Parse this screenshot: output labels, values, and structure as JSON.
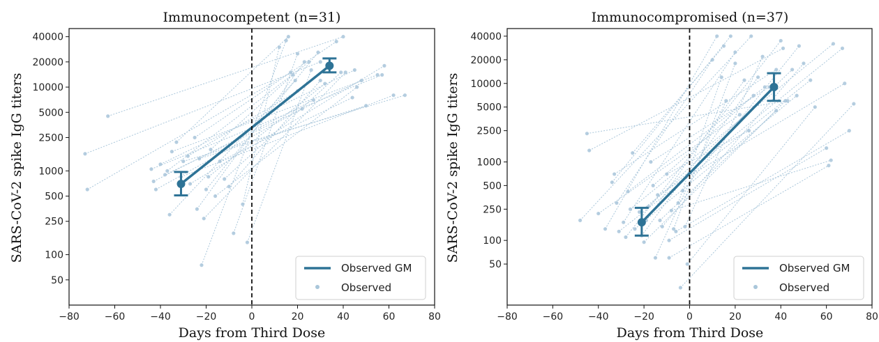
{
  "colors": {
    "gm": "#2e7396",
    "observed": "#a9c6da",
    "zero_line": "#111111",
    "frame": "#111111"
  },
  "chart_data": [
    {
      "type": "line",
      "title": "Immunocompetent (n=31)",
      "xlabel": "Days from Third Dose",
      "ylabel": "SARS-CoV-2 spike IgG titers",
      "xlim": [
        -80,
        80
      ],
      "ylim": [
        25,
        50000
      ],
      "yscale": "log",
      "grid": false,
      "legend": "bottom-right",
      "x_ticks": [
        -80,
        -60,
        -40,
        -20,
        0,
        20,
        40,
        60,
        80
      ],
      "y_ticks": [
        50,
        100,
        250,
        500,
        1000,
        2500,
        5000,
        10000,
        20000,
        40000
      ],
      "vline_x": 0,
      "legend_entries": [
        "Observed GM",
        "Observed"
      ],
      "gm": {
        "name": "Observed GM",
        "points": [
          {
            "x": -31,
            "y": 700,
            "ci": [
              510,
              970
            ]
          },
          {
            "x": 34,
            "y": 18000,
            "ci": [
              15000,
              22000
            ]
          }
        ]
      },
      "observed_pairs": [
        [
          [
            -73,
            1600
          ],
          [
            30,
            20000
          ]
        ],
        [
          [
            -72,
            600
          ],
          [
            17,
            15000
          ]
        ],
        [
          [
            -63,
            4500
          ],
          [
            40,
            40000
          ]
        ],
        [
          [
            -44,
            1050
          ],
          [
            57,
            14000
          ]
        ],
        [
          [
            -43,
            750
          ],
          [
            27,
            7000
          ]
        ],
        [
          [
            -42,
            600
          ],
          [
            22,
            5500
          ]
        ],
        [
          [
            -40,
            1200
          ],
          [
            45,
            16000
          ]
        ],
        [
          [
            -38,
            900
          ],
          [
            48,
            12000
          ]
        ],
        [
          [
            -37,
            1000
          ],
          [
            25,
            20000
          ]
        ],
        [
          [
            -36,
            300
          ],
          [
            19,
            12000
          ]
        ],
        [
          [
            -35,
            1700
          ],
          [
            55,
            14000
          ]
        ],
        [
          [
            -33,
            2200
          ],
          [
            16,
            40000
          ]
        ],
        [
          [
            -31,
            850
          ],
          [
            62,
            8000
          ]
        ],
        [
          [
            -30,
            1300
          ],
          [
            67,
            8000
          ]
        ],
        [
          [
            -28,
            1500
          ],
          [
            20,
            9000
          ]
        ],
        [
          [
            -27,
            700
          ],
          [
            58,
            18000
          ]
        ],
        [
          [
            -25,
            2500
          ],
          [
            37,
            35000
          ]
        ],
        [
          [
            -24,
            350
          ],
          [
            23,
            20000
          ]
        ],
        [
          [
            -23,
            1400
          ],
          [
            50,
            6000
          ]
        ],
        [
          [
            -22,
            75
          ],
          [
            15,
            36000
          ]
        ],
        [
          [
            -21,
            270
          ],
          [
            41,
            15000
          ]
        ],
        [
          [
            -20,
            600
          ],
          [
            29,
            26000
          ]
        ],
        [
          [
            -19,
            850
          ],
          [
            32,
            11000
          ]
        ],
        [
          [
            -18,
            1800
          ],
          [
            18,
            14000
          ]
        ],
        [
          [
            -16,
            500
          ],
          [
            46,
            10000
          ]
        ],
        [
          [
            -14,
            1300
          ],
          [
            44,
            7500
          ]
        ],
        [
          [
            -12,
            800
          ],
          [
            39,
            15000
          ]
        ],
        [
          [
            -10,
            650
          ],
          [
            30,
            12000
          ]
        ],
        [
          [
            -8,
            180
          ],
          [
            20,
            25000
          ]
        ],
        [
          [
            -4,
            400
          ],
          [
            12,
            30000
          ]
        ],
        [
          [
            -2,
            140
          ],
          [
            26,
            16000
          ]
        ]
      ]
    },
    {
      "type": "line",
      "title": "Immunocompromised (n=37)",
      "xlabel": "Days from Third Dose",
      "ylabel": "SARS-CoV-2 spike IgG titers",
      "xlim": [
        -80,
        80
      ],
      "ylim": [
        15,
        50000
      ],
      "yscale": "log",
      "grid": false,
      "legend": "bottom-right",
      "x_ticks": [
        -80,
        -60,
        -40,
        -20,
        0,
        20,
        40,
        60,
        80
      ],
      "y_ticks": [
        50,
        100,
        250,
        500,
        1000,
        2500,
        5000,
        10000,
        20000,
        40000
      ],
      "vline_x": 0,
      "legend_entries": [
        "Observed GM",
        "Observed"
      ],
      "gm": {
        "name": "Observed GM",
        "points": [
          {
            "x": -21,
            "y": 170,
            "ci": [
              115,
              260
            ]
          },
          {
            "x": 37,
            "y": 9000,
            "ci": [
              6000,
              13500
            ]
          }
        ]
      },
      "observed_pairs": [
        [
          [
            -48,
            180
          ],
          [
            27,
            40000
          ]
        ],
        [
          [
            -45,
            2300
          ],
          [
            43,
            6000
          ]
        ],
        [
          [
            -44,
            1400
          ],
          [
            41,
            28000
          ]
        ],
        [
          [
            -40,
            220
          ],
          [
            22,
            4000
          ]
        ],
        [
          [
            -37,
            140
          ],
          [
            12,
            40000
          ]
        ],
        [
          [
            -34,
            550
          ],
          [
            18,
            40000
          ]
        ],
        [
          [
            -33,
            700
          ],
          [
            38,
            15000
          ]
        ],
        [
          [
            -32,
            300
          ],
          [
            10,
            20000
          ]
        ],
        [
          [
            -31,
            130
          ],
          [
            53,
            11000
          ]
        ],
        [
          [
            -29,
            170
          ],
          [
            20,
            25000
          ]
        ],
        [
          [
            -28,
            110
          ],
          [
            40,
            35000
          ]
        ],
        [
          [
            -27,
            420
          ],
          [
            33,
            9000
          ]
        ],
        [
          [
            -26,
            250
          ],
          [
            63,
            32000
          ]
        ],
        [
          [
            -25,
            1300
          ],
          [
            15,
            30000
          ]
        ],
        [
          [
            -24,
            140
          ],
          [
            47,
            7000
          ]
        ],
        [
          [
            -22,
            230
          ],
          [
            67,
            28000
          ]
        ],
        [
          [
            -21,
            115
          ],
          [
            30,
            12000
          ]
        ],
        [
          [
            -20,
            95
          ],
          [
            42,
            6000
          ]
        ],
        [
          [
            -19,
            180
          ],
          [
            24,
            11000
          ]
        ],
        [
          [
            -18,
            270
          ],
          [
            45,
            15000
          ]
        ],
        [
          [
            -17,
            1000
          ],
          [
            35,
            9000
          ]
        ],
        [
          [
            -16,
            500
          ],
          [
            28,
            7000
          ]
        ],
        [
          [
            -15,
            60
          ],
          [
            16,
            6000
          ]
        ],
        [
          [
            -14,
            380
          ],
          [
            68,
            10000
          ]
        ],
        [
          [
            -13,
            180
          ],
          [
            38,
            4500
          ]
        ],
        [
          [
            -12,
            150
          ],
          [
            50,
            18000
          ]
        ],
        [
          [
            -10,
            700
          ],
          [
            26,
            2500
          ]
        ],
        [
          [
            -9,
            100
          ],
          [
            60,
            1500
          ]
        ],
        [
          [
            -8,
            240
          ],
          [
            62,
            1050
          ]
        ],
        [
          [
            -7,
            140
          ],
          [
            20,
            18000
          ]
        ],
        [
          [
            -6,
            130
          ],
          [
            70,
            2500
          ]
        ],
        [
          [
            -5,
            300
          ],
          [
            14,
            12000
          ]
        ],
        [
          [
            -4,
            25
          ],
          [
            72,
            5500
          ]
        ],
        [
          [
            -3,
            430
          ],
          [
            48,
            30000
          ]
        ],
        [
          [
            -2,
            150
          ],
          [
            32,
            22000
          ]
        ],
        [
          [
            -1,
            50
          ],
          [
            55,
            5000
          ]
        ],
        [
          [
            -9,
            60
          ],
          [
            61,
            900
          ]
        ]
      ]
    }
  ]
}
